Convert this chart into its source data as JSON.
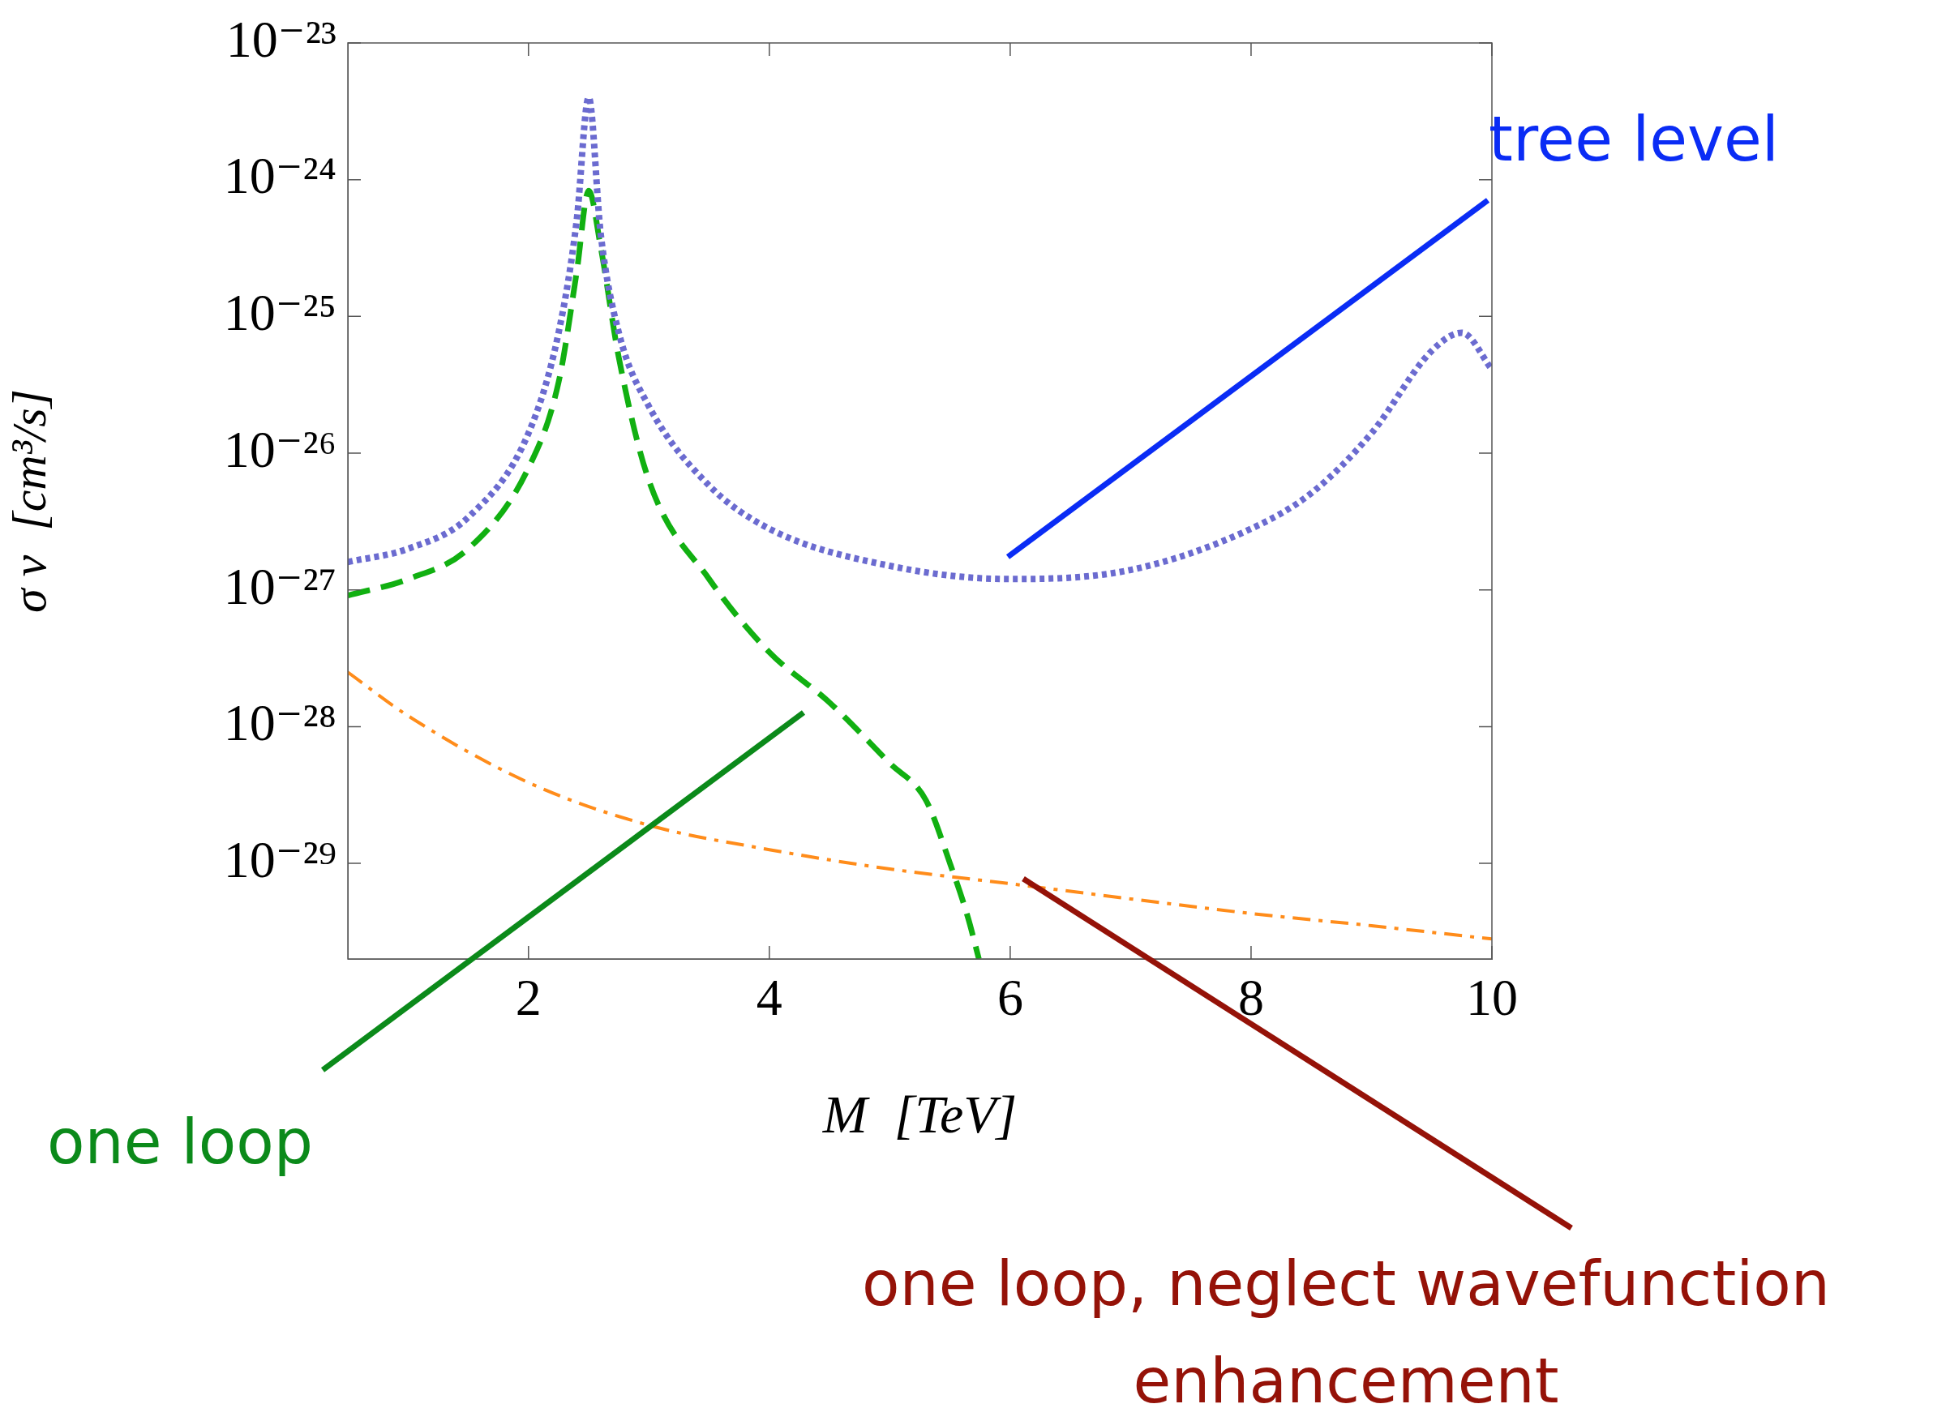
{
  "chart_data": {
    "type": "line",
    "xlabel": "M  [TeV]",
    "ylabel": "σ v  [cm³/s]",
    "log": "y",
    "xlim": [
      0.5,
      10
    ],
    "xticks": [
      2,
      4,
      6,
      8,
      10
    ],
    "ylim": [
      2e-30,
      1e-23
    ],
    "yticks": [
      {
        "value": 1e-29,
        "label": "10⁻²⁹"
      },
      {
        "value": 1e-28,
        "label": "10⁻²⁸"
      },
      {
        "value": 1e-27,
        "label": "10⁻²⁷"
      },
      {
        "value": 1e-26,
        "label": "10⁻²⁶"
      },
      {
        "value": 1e-25,
        "label": "10⁻²⁵"
      },
      {
        "value": 1e-24,
        "label": "10⁻²⁴"
      },
      {
        "value": 1e-23,
        "label": "10⁻²³"
      }
    ],
    "grid": false,
    "legend": false,
    "series": [
      {
        "color": "#6b6bd0",
        "line_style": "dotted",
        "x": [
          0.5,
          1,
          1.5,
          2,
          2.25,
          2.4,
          2.5,
          2.6,
          2.75,
          3,
          3.5,
          4,
          5,
          6,
          7,
          8,
          8.5,
          9,
          9.5,
          9.75,
          10
        ],
        "values": [
          1.6e-27,
          2e-27,
          3.4e-27,
          1.4e-26,
          7.6e-26,
          5e-25,
          4e-24,
          4e-25,
          7.6e-26,
          2.2e-26,
          5.8e-27,
          2.8e-27,
          1.5e-27,
          1.2e-27,
          1.4e-27,
          2.8e-27,
          5.1e-27,
          1.4e-26,
          5.6e-26,
          7.6e-26,
          4.1e-26
        ]
      },
      {
        "color": "#11b011",
        "line_style": "dashed",
        "x": [
          0.5,
          1,
          1.5,
          2,
          2.25,
          2.4,
          2.5,
          2.6,
          2.75,
          3,
          3.5,
          4,
          4.5,
          5,
          5.3,
          5.5,
          5.65,
          5.74
        ],
        "values": [
          9.1e-28,
          1.2e-27,
          2e-27,
          7.8e-27,
          3.3e-26,
          2.1e-25,
          8.3e-25,
          3.2e-25,
          5e-26,
          6.3e-27,
          1.2e-27,
          3.5e-28,
          1.5e-28,
          5.4e-29,
          2.9e-29,
          1e-29,
          4e-30,
          2e-30
        ]
      },
      {
        "color": "#ff8c1a",
        "line_style": "dashdot",
        "x": [
          0.5,
          1,
          2,
          3,
          4,
          5,
          6,
          7,
          8,
          9,
          10
        ],
        "values": [
          2.5e-28,
          1.2e-28,
          3.9e-29,
          1.9e-29,
          1.26e-29,
          9.1e-30,
          7.1e-30,
          5.5e-30,
          4.3e-30,
          3.5e-30,
          2.8e-30
        ]
      }
    ],
    "annotations": [
      "tree level",
      "one loop",
      "one loop, neglect wavefunction\nenhancement"
    ]
  }
}
